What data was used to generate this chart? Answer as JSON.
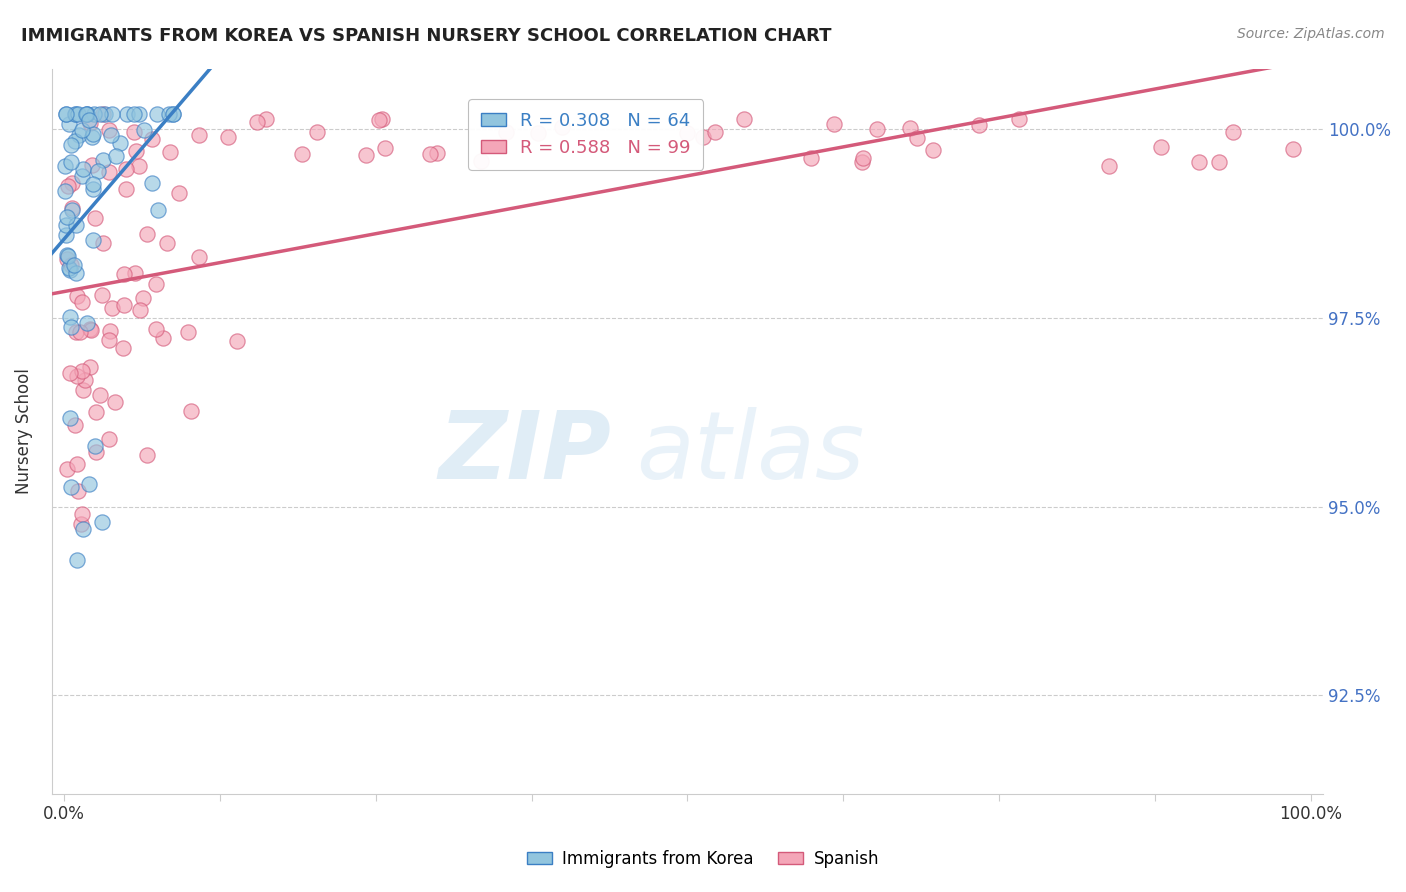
{
  "title": "IMMIGRANTS FROM KOREA VS SPANISH NURSERY SCHOOL CORRELATION CHART",
  "source": "Source: ZipAtlas.com",
  "ylabel": "Nursery School",
  "legend_label1": "Immigrants from Korea",
  "legend_label2": "Spanish",
  "r1": 0.308,
  "n1": 64,
  "r2": 0.588,
  "n2": 99,
  "color_blue": "#92c5de",
  "color_pink": "#f4a6b8",
  "color_blue_line": "#3b7fc4",
  "color_pink_line": "#d45a7a",
  "ytick_values": [
    92.5,
    95.0,
    97.5,
    100.0
  ],
  "ymin": 91.2,
  "ymax": 100.8,
  "xmin": -0.01,
  "xmax": 1.01,
  "watermark_zip": "ZIP",
  "watermark_atlas": "atlas"
}
